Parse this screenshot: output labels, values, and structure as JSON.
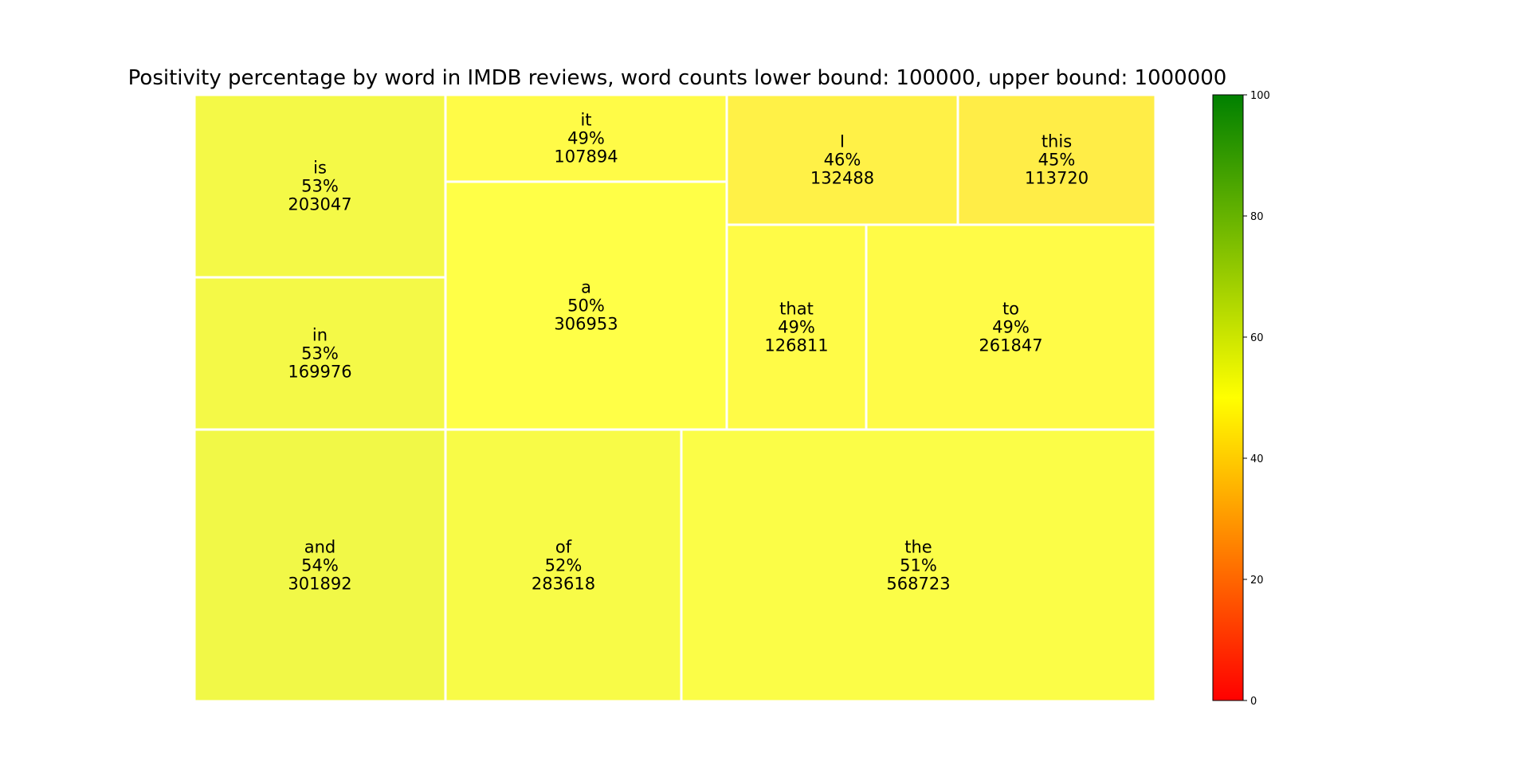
{
  "chart_data": {
    "type": "treemap",
    "title": "Positivity percentage by word in IMDB reviews, word counts lower bound: 100000, upper bound: 1000000",
    "tiles": [
      {
        "word": "is",
        "percent_label": "53%",
        "count": 203047,
        "positivity": 53
      },
      {
        "word": "in",
        "percent_label": "53%",
        "count": 169976,
        "positivity": 53
      },
      {
        "word": "and",
        "percent_label": "54%",
        "count": 301892,
        "positivity": 54
      },
      {
        "word": "it",
        "percent_label": "49%",
        "count": 107894,
        "positivity": 49
      },
      {
        "word": "a",
        "percent_label": "50%",
        "count": 306953,
        "positivity": 50
      },
      {
        "word": "of",
        "percent_label": "52%",
        "count": 283618,
        "positivity": 52
      },
      {
        "word": "I",
        "percent_label": "46%",
        "count": 132488,
        "positivity": 46
      },
      {
        "word": "this",
        "percent_label": "45%",
        "count": 113720,
        "positivity": 45
      },
      {
        "word": "that",
        "percent_label": "49%",
        "count": 126811,
        "positivity": 49
      },
      {
        "word": "to",
        "percent_label": "49%",
        "count": 261847,
        "positivity": 49
      },
      {
        "word": "the",
        "percent_label": "51%",
        "count": 568723,
        "positivity": 51
      }
    ],
    "colorbar": {
      "min": 0,
      "max": 100,
      "ticks": [
        "0",
        "20",
        "40",
        "60",
        "80",
        "100"
      ],
      "colors": [
        "#ff0000",
        "#ffff00",
        "#008000"
      ]
    }
  }
}
